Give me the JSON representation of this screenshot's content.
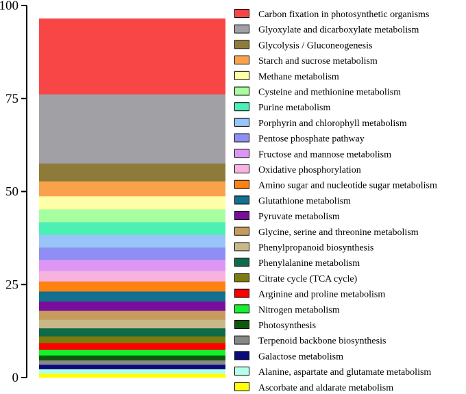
{
  "chart_data": {
    "type": "bar",
    "stacked": true,
    "title": "",
    "xlabel": "",
    "ylabel": "",
    "ylim": [
      0,
      100
    ],
    "yticks": [
      0,
      25,
      50,
      75,
      100
    ],
    "grid": false,
    "legend_position": "right",
    "series": [
      {
        "name": "Carbon fixation in photosynthetic organisms",
        "value": 20.3,
        "color": "#F84545"
      },
      {
        "name": "Glyoxylate and dicarboxylate metabolism",
        "value": 18.6,
        "color": "#A0A0A5"
      },
      {
        "name": "Glycolysis / Gluconeogenesis",
        "value": 4.8,
        "color": "#8E7B3A"
      },
      {
        "name": "Starch and sucrose metabolism",
        "value": 4.0,
        "color": "#F9A24B"
      },
      {
        "name": "Methane metabolism",
        "value": 3.5,
        "color": "#FFFFA8"
      },
      {
        "name": "Cysteine and methionine metabolism",
        "value": 3.5,
        "color": "#A6FF9E"
      },
      {
        "name": "Purine metabolism",
        "value": 3.4,
        "color": "#4CF0B4"
      },
      {
        "name": "Porphyrin and chlorophyll metabolism",
        "value": 3.4,
        "color": "#98C4F8"
      },
      {
        "name": "Pentose phosphate pathway",
        "value": 3.3,
        "color": "#8E8EF4"
      },
      {
        "name": "Fructose and mannose metabolism",
        "value": 3.0,
        "color": "#DE96F4"
      },
      {
        "name": "Oxidative phosphorylation",
        "value": 2.8,
        "color": "#F7B2E0"
      },
      {
        "name": "Amino sugar and nucleotide sugar metabolism",
        "value": 2.7,
        "color": "#FF8210"
      },
      {
        "name": "Glutathione metabolism",
        "value": 2.7,
        "color": "#13708E"
      },
      {
        "name": "Pyruvate metabolism",
        "value": 2.5,
        "color": "#7A0E9C"
      },
      {
        "name": "Glycine, serine and threonine metabolism",
        "value": 2.4,
        "color": "#C59C5E"
      },
      {
        "name": "Phenylpropanoid biosynthesis",
        "value": 2.3,
        "color": "#C8B888"
      },
      {
        "name": "Phenylalanine metabolism",
        "value": 2.2,
        "color": "#0E6A48"
      },
      {
        "name": "Citrate cycle (TCA cycle)",
        "value": 1.8,
        "color": "#7E7A0C"
      },
      {
        "name": "Arginine and proline metabolism",
        "value": 1.8,
        "color": "#FF0000"
      },
      {
        "name": "Nitrogen metabolism",
        "value": 1.5,
        "color": "#14F22C"
      },
      {
        "name": "Photosynthesis",
        "value": 1.3,
        "color": "#0B5A0B"
      },
      {
        "name": "Terpenoid backbone biosynthesis",
        "value": 1.2,
        "color": "#888888"
      },
      {
        "name": "Galactose metabolism",
        "value": 1.2,
        "color": "#0A0A7C"
      },
      {
        "name": "Alanine, aspartate and glutamate metabolism",
        "value": 1.2,
        "color": "#B4FFEA"
      },
      {
        "name": "Ascorbate and aldarate metabolism",
        "value": 1.1,
        "color": "#FFFF0A"
      }
    ]
  }
}
